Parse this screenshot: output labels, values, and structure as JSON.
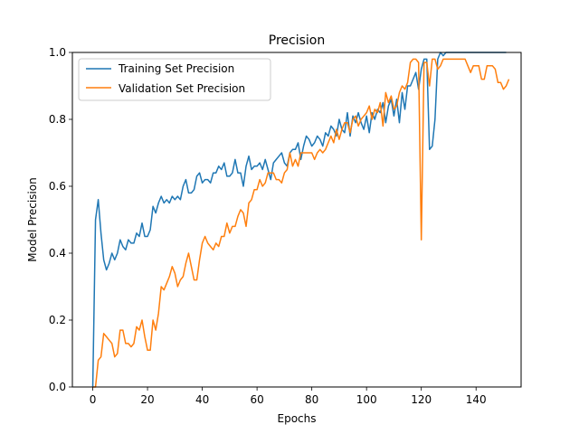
{
  "chart_data": {
    "type": "line",
    "title": "Precision",
    "xlabel": "Epochs",
    "ylabel": "Model Precision",
    "xlim": [
      -7.45,
      156.45
    ],
    "ylim": [
      0.0,
      1.0
    ],
    "xticks": [
      0,
      20,
      40,
      60,
      80,
      100,
      120,
      140
    ],
    "yticks": [
      0.0,
      0.2,
      0.4,
      0.6,
      0.8,
      1.0
    ],
    "xtick_labels": [
      "0",
      "20",
      "40",
      "60",
      "80",
      "100",
      "120",
      "140"
    ],
    "ytick_labels": [
      "0.0",
      "0.2",
      "0.4",
      "0.6",
      "0.8",
      "1.0"
    ],
    "grid": false,
    "legend_position": "upper-left",
    "series": [
      {
        "name": "Training Set Precision",
        "color": "#1f77b4",
        "values": [
          0.0,
          0.5,
          0.56,
          0.46,
          0.38,
          0.35,
          0.37,
          0.4,
          0.38,
          0.4,
          0.44,
          0.42,
          0.41,
          0.44,
          0.43,
          0.43,
          0.46,
          0.45,
          0.49,
          0.45,
          0.45,
          0.47,
          0.54,
          0.52,
          0.55,
          0.57,
          0.55,
          0.56,
          0.55,
          0.57,
          0.56,
          0.57,
          0.56,
          0.6,
          0.62,
          0.58,
          0.58,
          0.59,
          0.63,
          0.64,
          0.61,
          0.62,
          0.62,
          0.61,
          0.64,
          0.64,
          0.66,
          0.65,
          0.67,
          0.63,
          0.63,
          0.64,
          0.68,
          0.64,
          0.64,
          0.6,
          0.66,
          0.69,
          0.65,
          0.66,
          0.66,
          0.67,
          0.65,
          0.68,
          0.65,
          0.62,
          0.67,
          0.68,
          0.69,
          0.7,
          0.67,
          0.66,
          0.7,
          0.71,
          0.71,
          0.73,
          0.68,
          0.72,
          0.75,
          0.74,
          0.72,
          0.73,
          0.75,
          0.74,
          0.72,
          0.76,
          0.75,
          0.78,
          0.77,
          0.75,
          0.8,
          0.77,
          0.76,
          0.82,
          0.75,
          0.81,
          0.79,
          0.82,
          0.79,
          0.77,
          0.81,
          0.76,
          0.82,
          0.8,
          0.83,
          0.82,
          0.85,
          0.79,
          0.84,
          0.86,
          0.81,
          0.86,
          0.79,
          0.88,
          0.83,
          0.9,
          0.9,
          0.92,
          0.94,
          0.89,
          0.95,
          0.98,
          0.98,
          0.71,
          0.72,
          0.8,
          0.98,
          1.0,
          0.99,
          1.0,
          1.0,
          1.0,
          1.0,
          1.0,
          1.0,
          1.0,
          1.0,
          1.0,
          1.0,
          1.0,
          1.0,
          1.0,
          1.0,
          1.0,
          1.0,
          1.0,
          1.0,
          1.0,
          1.0,
          1.0,
          1.0,
          1.0
        ]
      },
      {
        "name": "Validation Set Precision",
        "color": "#ff7f0e",
        "values": [
          0.0,
          0.0,
          0.08,
          0.09,
          0.16,
          0.15,
          0.14,
          0.13,
          0.09,
          0.1,
          0.17,
          0.17,
          0.13,
          0.13,
          0.12,
          0.13,
          0.18,
          0.17,
          0.2,
          0.15,
          0.11,
          0.11,
          0.2,
          0.17,
          0.22,
          0.3,
          0.29,
          0.31,
          0.33,
          0.36,
          0.34,
          0.3,
          0.32,
          0.33,
          0.37,
          0.4,
          0.36,
          0.32,
          0.32,
          0.38,
          0.43,
          0.45,
          0.43,
          0.42,
          0.41,
          0.43,
          0.42,
          0.45,
          0.45,
          0.49,
          0.46,
          0.48,
          0.48,
          0.51,
          0.53,
          0.52,
          0.48,
          0.55,
          0.56,
          0.59,
          0.59,
          0.62,
          0.6,
          0.61,
          0.64,
          0.64,
          0.64,
          0.62,
          0.62,
          0.61,
          0.64,
          0.65,
          0.7,
          0.66,
          0.68,
          0.66,
          0.7,
          0.7,
          0.7,
          0.7,
          0.7,
          0.68,
          0.7,
          0.71,
          0.7,
          0.71,
          0.73,
          0.75,
          0.73,
          0.77,
          0.74,
          0.77,
          0.79,
          0.79,
          0.76,
          0.8,
          0.81,
          0.78,
          0.8,
          0.81,
          0.82,
          0.84,
          0.8,
          0.83,
          0.82,
          0.85,
          0.78,
          0.88,
          0.85,
          0.87,
          0.83,
          0.84,
          0.88,
          0.9,
          0.89,
          0.91,
          0.97,
          0.98,
          0.98,
          0.97,
          0.44,
          0.97,
          0.97,
          0.9,
          0.98,
          0.98,
          0.95,
          0.96,
          0.98,
          0.98,
          0.98,
          0.98,
          0.98,
          0.98,
          0.98,
          0.98,
          0.98,
          0.96,
          0.94,
          0.96,
          0.96,
          0.96,
          0.92,
          0.92,
          0.96,
          0.96,
          0.96,
          0.95,
          0.91,
          0.91,
          0.89,
          0.9,
          0.92
        ]
      }
    ]
  }
}
